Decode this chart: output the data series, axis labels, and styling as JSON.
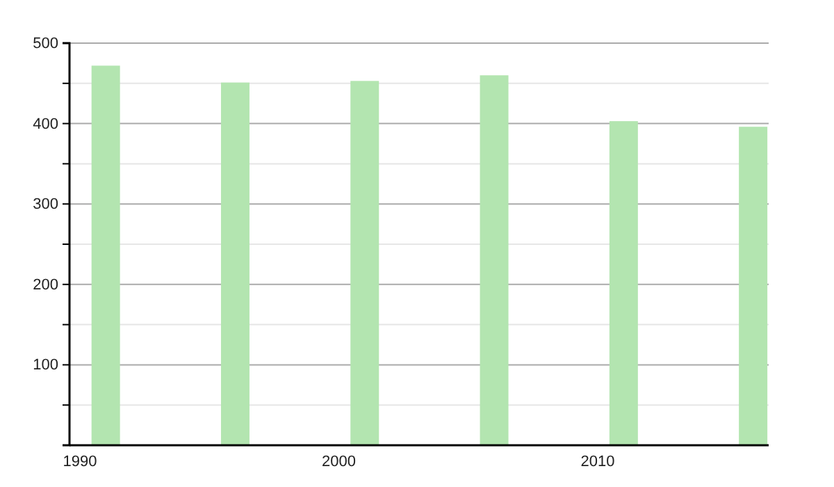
{
  "chart_data": {
    "type": "bar",
    "x": [
      1991,
      1996,
      2001,
      2006,
      2011,
      2016
    ],
    "values": [
      472,
      451,
      453,
      460,
      403,
      396
    ],
    "color": "#b3e5b0",
    "xlim": [
      1989.6,
      2016.6
    ],
    "xticks": [
      1990,
      2000,
      2010
    ],
    "ylim": [
      0,
      500
    ],
    "yticks": [
      {
        "value": 50,
        "label": null
      },
      100,
      {
        "value": 150,
        "label": null
      },
      200,
      {
        "value": 250,
        "label": null
      },
      300,
      {
        "value": 350,
        "label": null
      },
      400,
      {
        "value": 450,
        "label": null
      },
      500
    ],
    "grid": "y"
  }
}
